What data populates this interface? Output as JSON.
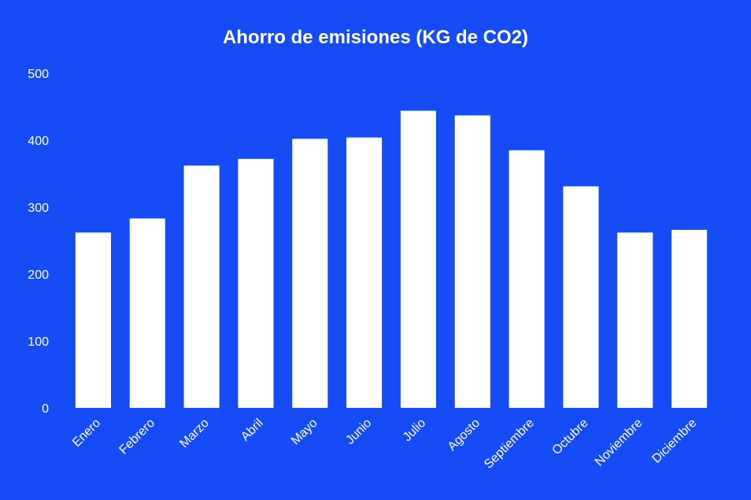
{
  "chart_data": {
    "type": "bar",
    "title": "Ahorro de emisiones (KG de CO2)",
    "xlabel": "",
    "ylabel": "",
    "categories": [
      "Enero",
      "Febrero",
      "Marzo",
      "Abril",
      "Mayo",
      "Junio",
      "Julio",
      "Agosto",
      "Septiembre",
      "Octubre",
      "Noviembre",
      "Diciembre"
    ],
    "values": [
      262,
      283,
      362,
      372,
      402,
      404,
      444,
      437,
      385,
      331,
      262,
      266
    ],
    "ylim": [
      0,
      500
    ],
    "yticks": [
      "0",
      "100",
      "200",
      "300",
      "400",
      "500"
    ],
    "grid": false,
    "legend": "none",
    "colors": {
      "background": "#164cf6",
      "bar": "#ffffff",
      "text": "#ffffff"
    }
  }
}
